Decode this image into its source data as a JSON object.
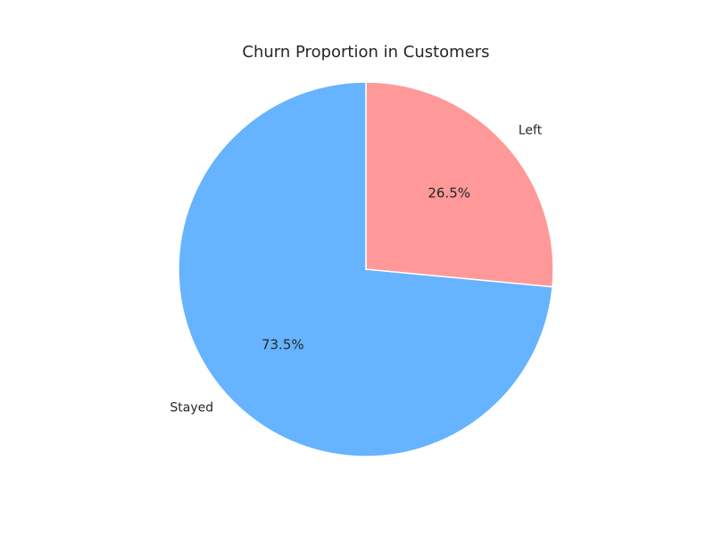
{
  "chart_data": {
    "type": "pie",
    "title": "Churn Proportion in Customers",
    "labels": [
      "Left",
      "Stayed"
    ],
    "values": [
      26.5,
      73.5
    ],
    "percent_labels": [
      "26.5%",
      "73.5%"
    ],
    "colors": [
      "#ff9999",
      "#66b3ff"
    ],
    "start_angle_deg": 90,
    "direction": "clockwise",
    "legend": "none"
  }
}
